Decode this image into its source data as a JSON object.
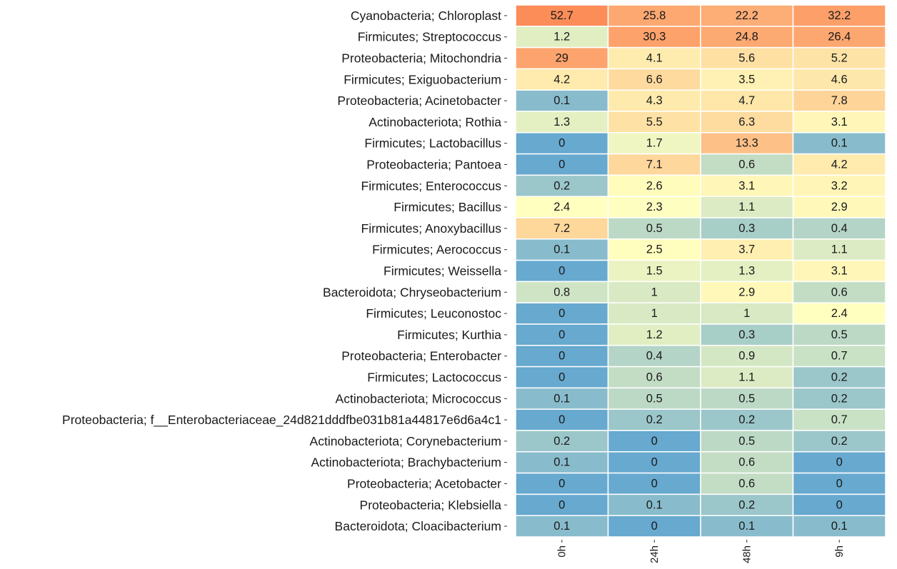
{
  "chart_data": {
    "type": "heatmap",
    "title": "",
    "xlabel": "",
    "ylabel": "",
    "legend": "none",
    "grid": false,
    "colors": {
      "low": "#67a9cf",
      "mid": "#ffffbf",
      "high": "#fc8d59"
    },
    "columns": [
      "0h",
      "24h",
      "48h",
      "9h"
    ],
    "rows": [
      {
        "label": "Cyanobacteria; Chloroplast",
        "values": [
          52.7,
          25.8,
          22.2,
          32.2
        ]
      },
      {
        "label": "Firmicutes; Streptococcus",
        "values": [
          1.2,
          30.3,
          24.8,
          26.4
        ]
      },
      {
        "label": "Proteobacteria; Mitochondria",
        "values": [
          29,
          4.1,
          5.6,
          5.2
        ]
      },
      {
        "label": "Firmicutes; Exiguobacterium",
        "values": [
          4.2,
          6.6,
          3.5,
          4.6
        ]
      },
      {
        "label": "Proteobacteria; Acinetobacter",
        "values": [
          0.1,
          4.3,
          4.7,
          7.8
        ]
      },
      {
        "label": "Actinobacteriota; Rothia",
        "values": [
          1.3,
          5.5,
          6.3,
          3.1
        ]
      },
      {
        "label": "Firmicutes; Lactobacillus",
        "values": [
          0,
          1.7,
          13.3,
          0.1
        ]
      },
      {
        "label": "Proteobacteria; Pantoea",
        "values": [
          0,
          7.1,
          0.6,
          4.2
        ]
      },
      {
        "label": "Firmicutes; Enterococcus",
        "values": [
          0.2,
          2.6,
          3.1,
          3.2
        ]
      },
      {
        "label": "Firmicutes; Bacillus",
        "values": [
          2.4,
          2.3,
          1.1,
          2.9
        ]
      },
      {
        "label": "Firmicutes; Anoxybacillus",
        "values": [
          7.2,
          0.5,
          0.3,
          0.4
        ]
      },
      {
        "label": "Firmicutes; Aerococcus",
        "values": [
          0.1,
          2.5,
          3.7,
          1.1
        ]
      },
      {
        "label": "Firmicutes; Weissella",
        "values": [
          0,
          1.5,
          1.3,
          3.1
        ]
      },
      {
        "label": "Bacteroidota; Chryseobacterium",
        "values": [
          0.8,
          1,
          2.9,
          0.6
        ]
      },
      {
        "label": "Firmicutes; Leuconostoc",
        "values": [
          0,
          1,
          1,
          2.4
        ]
      },
      {
        "label": "Firmicutes; Kurthia",
        "values": [
          0,
          1.2,
          0.3,
          0.5
        ]
      },
      {
        "label": "Proteobacteria; Enterobacter",
        "values": [
          0,
          0.4,
          0.9,
          0.7
        ]
      },
      {
        "label": "Firmicutes; Lactococcus",
        "values": [
          0,
          0.6,
          1.1,
          0.2
        ]
      },
      {
        "label": "Actinobacteriota; Micrococcus",
        "values": [
          0.1,
          0.5,
          0.5,
          0.2
        ]
      },
      {
        "label": "Proteobacteria; f__Enterobacteriaceae_24d821dddfbe031b81a44817e6d6a4c1",
        "values": [
          0,
          0.2,
          0.2,
          0.7
        ]
      },
      {
        "label": "Actinobacteriota; Corynebacterium",
        "values": [
          0.2,
          0,
          0.5,
          0.2
        ]
      },
      {
        "label": "Actinobacteriota; Brachybacterium",
        "values": [
          0.1,
          0,
          0.6,
          0
        ]
      },
      {
        "label": "Proteobacteria; Acetobacter",
        "values": [
          0,
          0,
          0.6,
          0
        ]
      },
      {
        "label": "Proteobacteria; Klebsiella",
        "values": [
          0,
          0.1,
          0.2,
          0
        ]
      },
      {
        "label": "Bacteroidota; Cloacibacterium",
        "values": [
          0.1,
          0,
          0.1,
          0.1
        ]
      }
    ]
  }
}
